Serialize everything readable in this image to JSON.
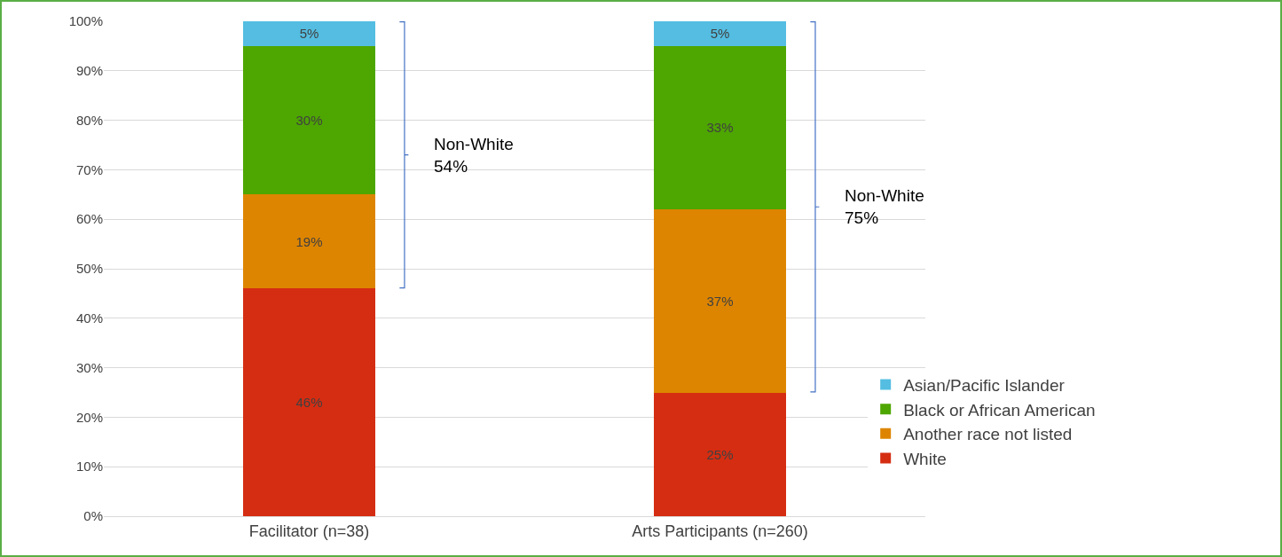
{
  "chart_data": {
    "type": "bar",
    "stacked": true,
    "categories": [
      "Facilitator (n=38)",
      "Arts Participants (n=260)"
    ],
    "series": [
      {
        "name": "White",
        "color": "#d52d12",
        "values": [
          46,
          25
        ],
        "value_labels": [
          "46%",
          "25%"
        ]
      },
      {
        "name": "Another race not listed",
        "color": "#dd8500",
        "values": [
          19,
          37
        ],
        "value_labels": [
          "19%",
          "37%"
        ]
      },
      {
        "name": "Black or African American",
        "color": "#4ea600",
        "values": [
          30,
          33
        ],
        "value_labels": [
          "30%",
          "33%"
        ]
      },
      {
        "name": "Asian/Pacific Islander",
        "color": "#54bde1",
        "values": [
          5,
          5
        ],
        "value_labels": [
          "5%",
          "5%"
        ]
      }
    ],
    "data_labels": true,
    "ylim": [
      0,
      100
    ],
    "yticks": [
      {
        "value": 0,
        "label": "0%"
      },
      {
        "value": 10,
        "label": "10%"
      },
      {
        "value": 20,
        "label": "20%"
      },
      {
        "value": 30,
        "label": "30%"
      },
      {
        "value": 40,
        "label": "40%"
      },
      {
        "value": 50,
        "label": "50%"
      },
      {
        "value": 60,
        "label": "60%"
      },
      {
        "value": 70,
        "label": "70%"
      },
      {
        "value": 80,
        "label": "80%"
      },
      {
        "value": 90,
        "label": "90%"
      },
      {
        "value": 100,
        "label": "100%"
      }
    ],
    "grid": "y",
    "legend": "right",
    "annotations": [
      "Non-White\n54%",
      "Non-White\n75%"
    ]
  }
}
